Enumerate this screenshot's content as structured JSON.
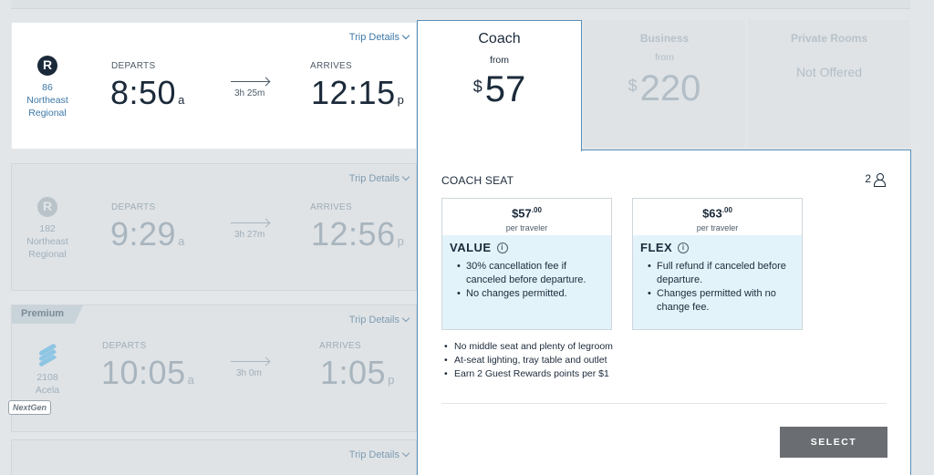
{
  "trains": [
    {
      "number": "86",
      "line1": "Northeast",
      "line2": "Regional",
      "departs_label": "DEPARTS",
      "depart_time": "8:50",
      "depart_ampm": "a",
      "duration": "3h 25m",
      "arrives_label": "ARRIVES",
      "arrive_time": "12:15",
      "arrive_ampm": "p",
      "trip_details": "Trip Details"
    },
    {
      "number": "182",
      "line1": "Northeast",
      "line2": "Regional",
      "departs_label": "DEPARTS",
      "depart_time": "9:29",
      "depart_ampm": "a",
      "duration": "3h 27m",
      "arrives_label": "ARRIVES",
      "arrive_time": "12:56",
      "arrive_ampm": "p",
      "trip_details": "Trip Details"
    },
    {
      "badge": "Premium",
      "number": "2108",
      "line1": "Acela",
      "nextgen": "NextGen",
      "departs_label": "DEPARTS",
      "depart_time": "10:05",
      "depart_ampm": "a",
      "duration": "3h 0m",
      "arrives_label": "ARRIVES",
      "arrive_time": "1:05",
      "arrive_ampm": "p",
      "trip_details": "Trip Details"
    },
    {
      "trip_details": "Trip Details"
    }
  ],
  "fare_tabs": {
    "coach": {
      "name": "Coach",
      "from": "from",
      "currency": "$",
      "price": "57"
    },
    "business": {
      "name": "Business",
      "from": "from",
      "currency": "$",
      "price": "220"
    },
    "private": {
      "name": "Private Rooms",
      "status": "Not Offered"
    }
  },
  "panel": {
    "title": "COACH SEAT",
    "travelers": "2",
    "fares": [
      {
        "price": "$57",
        "cents": ".00",
        "per": "per traveler",
        "name": "VALUE",
        "bullets": [
          "30% cancellation fee if canceled before departure.",
          "No changes permitted."
        ]
      },
      {
        "price": "$63",
        "cents": ".00",
        "per": "per traveler",
        "name": "FLEX",
        "bullets": [
          "Full refund if canceled before departure.",
          "Changes permitted with no change fee."
        ]
      }
    ],
    "amenities": [
      "No middle seat and plenty of legroom",
      "At-seat lighting, tray table and outlet",
      "Earn 2 Guest Rewards points per $1"
    ],
    "select_label": "SELECT"
  },
  "colors": {
    "accent_blue": "#3d78a8",
    "panel_border": "#5b8fb8",
    "fare_body": "#e3f3fa",
    "select_button": "#6a6e72"
  }
}
